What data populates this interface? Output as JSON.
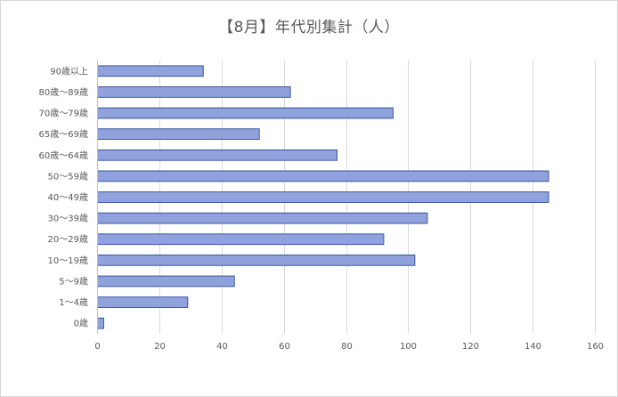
{
  "chart_data": {
    "type": "bar",
    "orientation": "horizontal",
    "title": "【8月】年代別集計（人）",
    "xlabel": "",
    "ylabel": "",
    "categories": [
      "0歳",
      "1～4歳",
      "5～9歳",
      "10～19歳",
      "20～29歳",
      "30～39歳",
      "40～49歳",
      "50～59歳",
      "60歳～64歳",
      "65歳～69歳",
      "70歳～79歳",
      "80歳～89歳",
      "90歳以上"
    ],
    "values": [
      2,
      29,
      44,
      102,
      92,
      106,
      145,
      145,
      77,
      52,
      95,
      62,
      34
    ],
    "xlim": [
      0,
      160
    ],
    "xticks": [
      0,
      20,
      40,
      60,
      80,
      100,
      120,
      140,
      160
    ],
    "grid": "vertical",
    "legend": "none",
    "colors": {
      "bar_fill": "#8fa2dc",
      "bar_stroke": "#2f4b9a",
      "grid": "#d9d9d9",
      "axis": "#bfbfbf",
      "text": "#595959"
    }
  }
}
